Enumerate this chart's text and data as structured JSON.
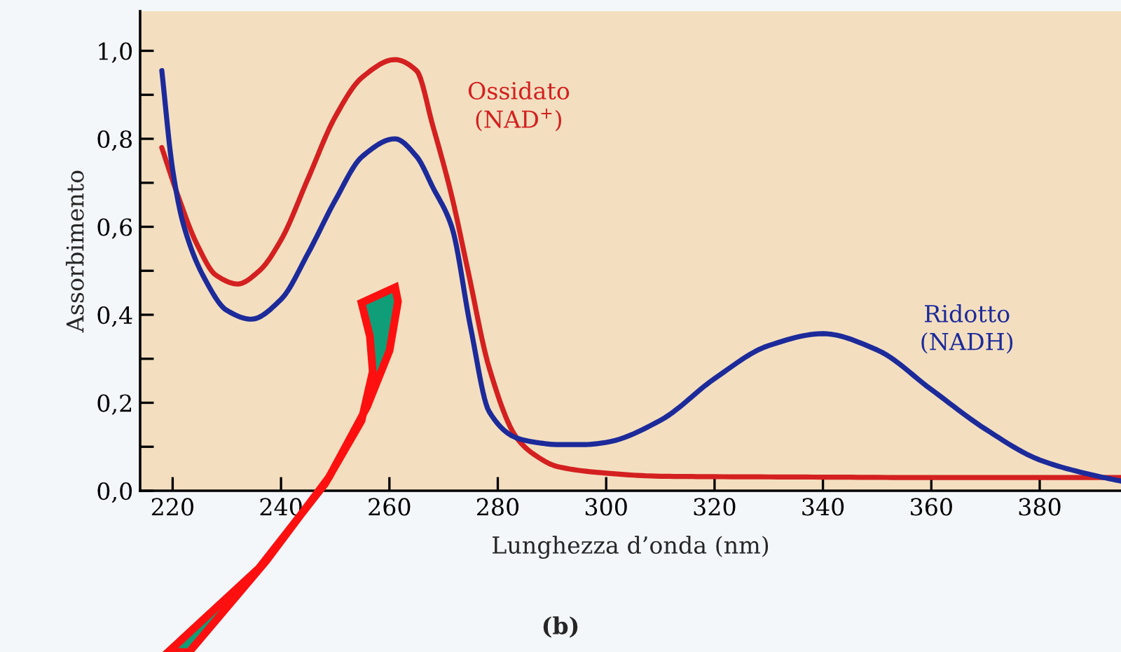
{
  "chart_data": {
    "type": "line",
    "xlabel": "Lunghezza d’onda (nm)",
    "ylabel": "Assorbimento",
    "xlim": [
      214,
      395
    ],
    "ylim": [
      0,
      1.09
    ],
    "xticks": [
      220,
      240,
      260,
      280,
      300,
      320,
      340,
      360,
      380
    ],
    "yticks": [
      {
        "value": 0,
        "label": "0,0"
      },
      {
        "value": 0.1,
        "label": null
      },
      {
        "value": 0.2,
        "label": "0,2"
      },
      {
        "value": 0.3,
        "label": null
      },
      {
        "value": 0.4,
        "label": "0,4"
      },
      {
        "value": 0.5,
        "label": null
      },
      {
        "value": 0.6,
        "label": "0,6"
      },
      {
        "value": 0.7,
        "label": null
      },
      {
        "value": 0.8,
        "label": "0,8"
      },
      {
        "value": 0.9,
        "label": null
      },
      {
        "value": 1.0,
        "label": "1,0"
      }
    ],
    "grid": false,
    "legend": false,
    "marker": "none",
    "line_style": "solid",
    "series": [
      {
        "name": "Ossidato\n(NAD$^{+}$)",
        "color": "#d42020",
        "x": [
          218,
          221,
          224.5,
          228,
          232,
          236,
          240,
          245,
          250,
          255,
          261,
          265,
          268,
          271.5,
          274.5,
          278.4,
          283.5,
          287,
          291,
          300,
          310,
          320,
          340,
          360,
          380,
          395
        ],
        "values": [
          0.78,
          0.67,
          0.56,
          0.49,
          0.47,
          0.5,
          0.57,
          0.71,
          0.85,
          0.94,
          0.98,
          0.955,
          0.83,
          0.67,
          0.5,
          0.28,
          0.12,
          0.08,
          0.055,
          0.04,
          0.033,
          0.032,
          0.031,
          0.03,
          0.03,
          0.03
        ]
      },
      {
        "name": "Ridotto\n(NADH)",
        "color": "#1c2a9a",
        "x": [
          218,
          220,
          222,
          226,
          230,
          234.5,
          240,
          245,
          250,
          255,
          261,
          265,
          268,
          271.5,
          275,
          278.4,
          283.5,
          287,
          291,
          296,
          300,
          310,
          320,
          330,
          340,
          350,
          360,
          370,
          380,
          390,
          395
        ],
        "values": [
          0.955,
          0.73,
          0.605,
          0.48,
          0.41,
          0.39,
          0.435,
          0.54,
          0.66,
          0.76,
          0.8,
          0.76,
          0.69,
          0.6,
          0.37,
          0.18,
          0.12,
          0.11,
          0.105,
          0.105,
          0.11,
          0.16,
          0.255,
          0.33,
          0.357,
          0.32,
          0.23,
          0.14,
          0.07,
          0.035,
          0.022
        ]
      }
    ],
    "annotations": [
      "(b)"
    ]
  }
}
